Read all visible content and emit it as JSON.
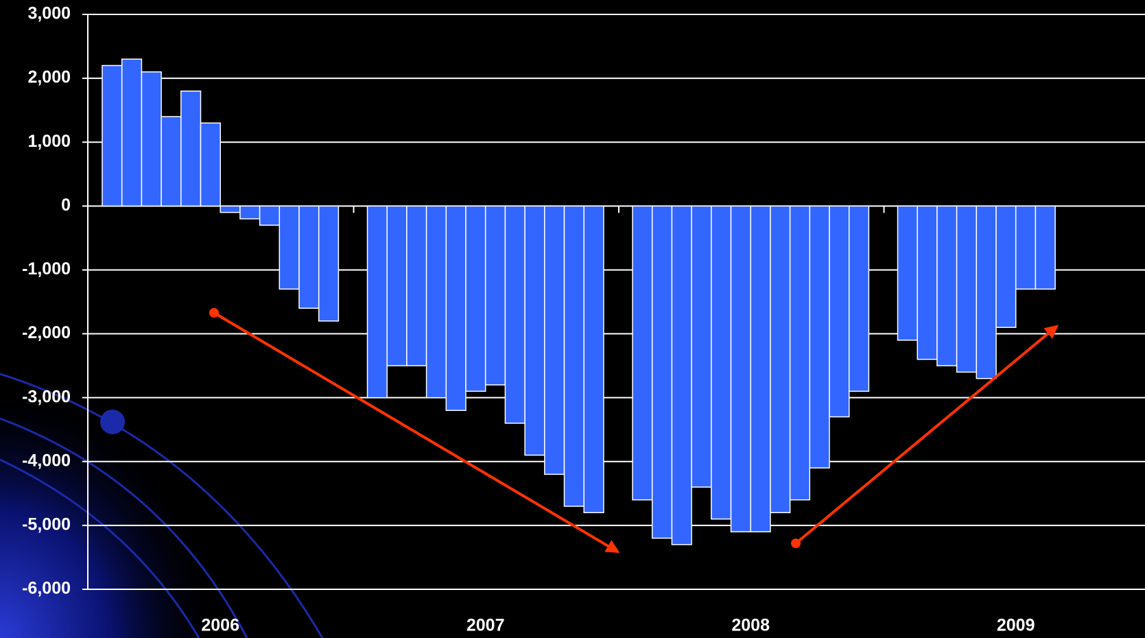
{
  "chart_data": {
    "type": "bar",
    "color": "#3366ff",
    "groups": [
      {
        "name": "2006",
        "values": [
          2200,
          2300,
          2100,
          1400,
          1800,
          1300,
          -100,
          -200,
          -300,
          -1300,
          -1600,
          -1800
        ]
      },
      {
        "name": "2007",
        "values": [
          -3000,
          -2500,
          -2500,
          -3000,
          -3200,
          -2900,
          -2800,
          -3400,
          -3900,
          -4200,
          -4700,
          -4800
        ]
      },
      {
        "name": "2008",
        "values": [
          -4600,
          -5200,
          -5300,
          -4400,
          -4900,
          -5100,
          -5100,
          -4800,
          -4600,
          -4100,
          -3300,
          -2900
        ]
      },
      {
        "name": "2009",
        "values": [
          -2100,
          -2400,
          -2500,
          -2600,
          -2700,
          -1900,
          -1300,
          -1300
        ]
      }
    ],
    "ylim": [
      -6000,
      3000
    ],
    "yticks": [
      {
        "value": 3000,
        "label": "3,000"
      },
      {
        "value": 2000,
        "label": "2,000"
      },
      {
        "value": 1000,
        "label": "1,000"
      },
      0,
      {
        "value": -1000,
        "label": "-1,000"
      },
      {
        "value": -2000,
        "label": "-2,000"
      },
      {
        "value": -3000,
        "label": "-3,000"
      },
      {
        "value": -4000,
        "label": "-4,000"
      },
      {
        "value": -5000,
        "label": "-5,000"
      },
      {
        "value": -6000,
        "label": "-6,000"
      }
    ],
    "grid": true
  }
}
